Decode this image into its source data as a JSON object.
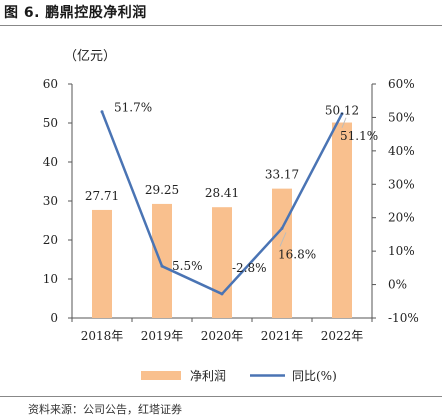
{
  "figure": {
    "title": "图 6. 鹏鼎控股净利润",
    "source": "资料来源：公司公告，红塔证券"
  },
  "chart_data": {
    "type": "bar",
    "categories": [
      "2018年",
      "2019年",
      "2020年",
      "2021年",
      "2022年"
    ],
    "y_unit_label": "（亿元）",
    "ylim": [
      0,
      60
    ],
    "y_ticks": [
      "0",
      "10",
      "20",
      "30",
      "40",
      "50",
      "60"
    ],
    "y2lim": [
      -10,
      60
    ],
    "y2_ticks": [
      "-10%",
      "0%",
      "10%",
      "20%",
      "30%",
      "40%",
      "50%",
      "60%"
    ],
    "series": [
      {
        "name": "净利润",
        "type": "bar",
        "axis": "left",
        "color": "#f9c08e",
        "values": [
          27.71,
          29.25,
          28.41,
          33.17,
          50.12
        ],
        "labels": [
          "27.71",
          "29.25",
          "28.41",
          "33.17",
          "50.12"
        ]
      },
      {
        "name": "同比(%)",
        "type": "line",
        "axis": "right",
        "color": "#4a74b4",
        "values": [
          51.7,
          5.5,
          -2.8,
          16.8,
          51.1
        ],
        "labels": [
          "51.7%",
          "5.5%",
          "-2.8%",
          "16.8%",
          "51.1%"
        ]
      }
    ],
    "legend_position": "bottom",
    "grid": false
  }
}
